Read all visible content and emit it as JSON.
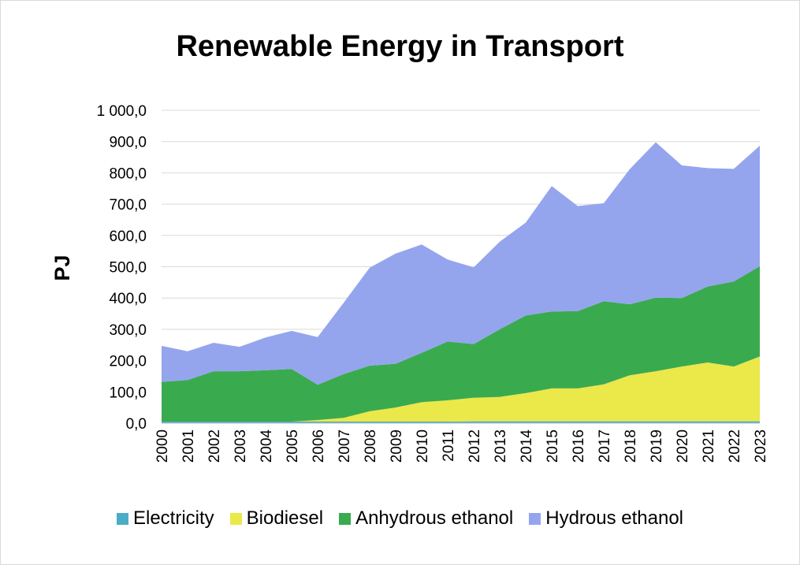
{
  "chart_data": {
    "type": "area",
    "stacked": true,
    "title": "Renewable Energy in Transport",
    "ylabel": "PJ",
    "xlabel": "",
    "ylim": [
      0,
      1000
    ],
    "yticks": [
      "0,0",
      "100,0",
      "200,0",
      "300,0",
      "400,0",
      "500,0",
      "600,0",
      "700,0",
      "800,0",
      "900,0",
      "1 000,0"
    ],
    "categories": [
      "2000",
      "2001",
      "2002",
      "2003",
      "2004",
      "2005",
      "2006",
      "2007",
      "2008",
      "2009",
      "2010",
      "2011",
      "2012",
      "2013",
      "2014",
      "2015",
      "2016",
      "2017",
      "2018",
      "2019",
      "2020",
      "2021",
      "2022",
      "2023"
    ],
    "grid": true,
    "legend_position": "bottom",
    "series": [
      {
        "name": "Electricity",
        "color": "#4bacc6",
        "values": [
          5,
          5,
          5,
          5,
          5,
          5,
          5,
          5,
          5,
          5,
          5,
          5,
          6,
          6,
          6,
          6,
          6,
          6,
          6,
          6,
          6,
          6,
          6,
          6
        ]
      },
      {
        "name": "Biodiesel",
        "color": "#ebe84a",
        "values": [
          0,
          0,
          0,
          0,
          0,
          0,
          5,
          12,
          33,
          45,
          62,
          68,
          75,
          78,
          90,
          105,
          105,
          118,
          147,
          160,
          175,
          188,
          175,
          207
        ]
      },
      {
        "name": "Anhydrous ethanol",
        "color": "#3aaa4f",
        "values": [
          127,
          133,
          161,
          161,
          164,
          168,
          113,
          140,
          146,
          140,
          158,
          188,
          172,
          216,
          248,
          246,
          247,
          266,
          227,
          235,
          219,
          243,
          272,
          289
        ]
      },
      {
        "name": "Hydrous ethanol",
        "color": "#94a5ee",
        "values": [
          115,
          92,
          91,
          78,
          105,
          122,
          152,
          228,
          313,
          352,
          346,
          262,
          245,
          280,
          297,
          401,
          336,
          313,
          432,
          497,
          424,
          378,
          360,
          385
        ]
      }
    ]
  }
}
